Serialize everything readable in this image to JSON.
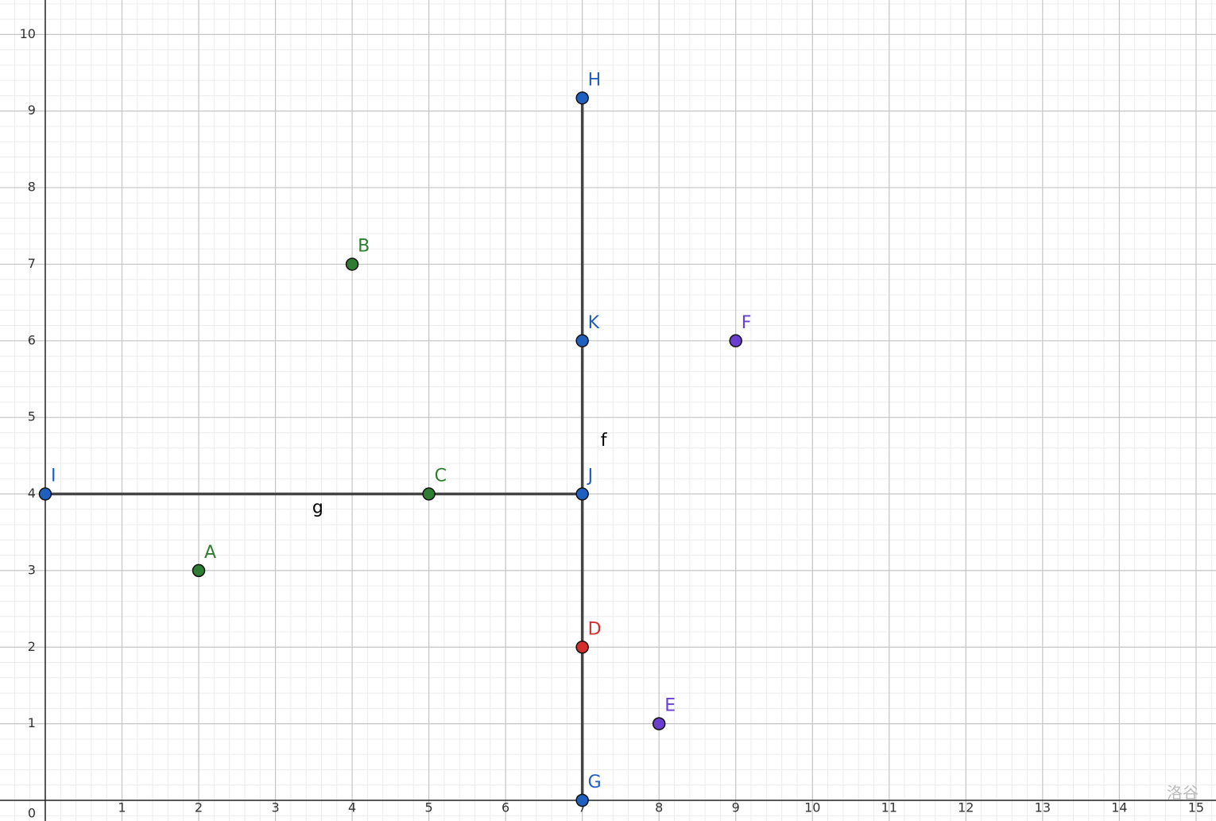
{
  "chart_data": {
    "type": "scatter",
    "xlim": [
      -0.59,
      15.26
    ],
    "ylim": [
      -0.27,
      10.45
    ],
    "xticks": [
      0,
      1,
      2,
      3,
      4,
      5,
      6,
      7,
      8,
      9,
      10,
      11,
      12,
      13,
      14,
      15
    ],
    "yticks": [
      1,
      2,
      3,
      4,
      5,
      6,
      7,
      8,
      9,
      10
    ],
    "grid": true,
    "points": [
      {
        "name": "A",
        "x": 2,
        "y": 3,
        "color": "#2e7d32"
      },
      {
        "name": "B",
        "x": 4,
        "y": 7,
        "color": "#2e7d32"
      },
      {
        "name": "C",
        "x": 5,
        "y": 4,
        "color": "#2e7d32"
      },
      {
        "name": "D",
        "x": 7,
        "y": 2,
        "color": "#d32f2f"
      },
      {
        "name": "E",
        "x": 8,
        "y": 1,
        "color": "#6a3fd0"
      },
      {
        "name": "F",
        "x": 9,
        "y": 6,
        "color": "#6a3fd0"
      },
      {
        "name": "G",
        "x": 7,
        "y": 0,
        "color": "#1f5fbf"
      },
      {
        "name": "H",
        "x": 7,
        "y": 9.17,
        "color": "#1f5fbf"
      },
      {
        "name": "I",
        "x": 0,
        "y": 4,
        "color": "#1f5fbf"
      },
      {
        "name": "J",
        "x": 7,
        "y": 4,
        "color": "#1f5fbf"
      },
      {
        "name": "K",
        "x": 7,
        "y": 6,
        "color": "#1f5fbf"
      }
    ],
    "segments": [
      {
        "name": "f",
        "endpoints": [
          "G",
          "H"
        ]
      },
      {
        "name": "g",
        "endpoints": [
          "I",
          "J"
        ]
      }
    ],
    "watermark": "洛谷"
  }
}
